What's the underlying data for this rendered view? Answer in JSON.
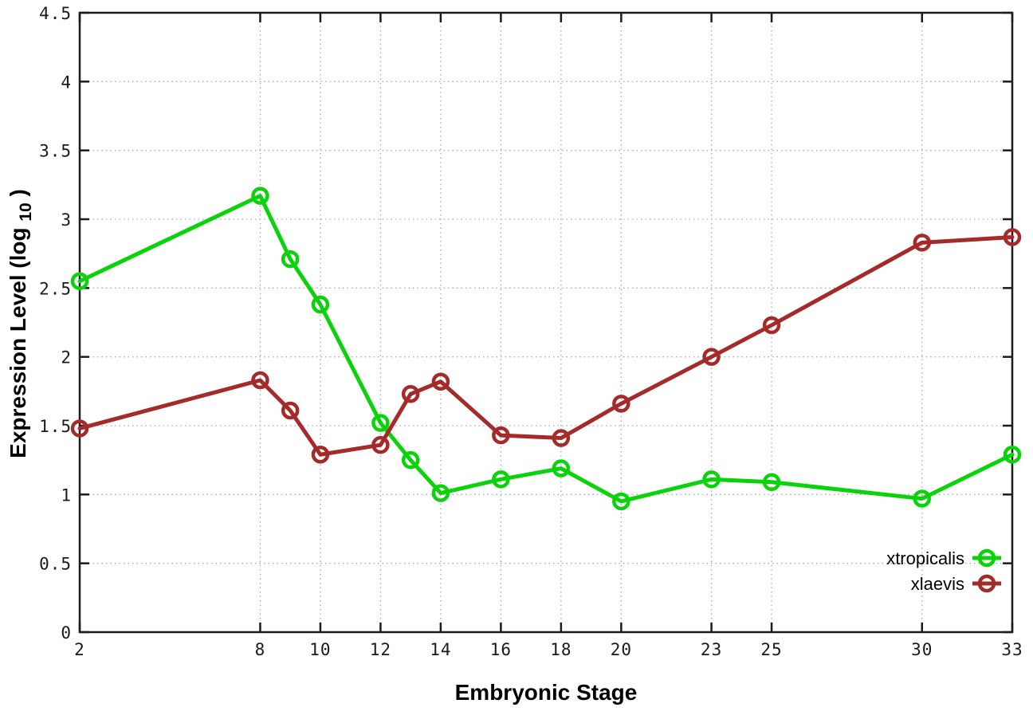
{
  "chart_data": {
    "type": "line",
    "title": "",
    "xlabel": "Embryonic Stage",
    "ylabel": "Expression Level (log10)",
    "ylabel_main": "Expression Level (log",
    "ylabel_sub": "10",
    "ylabel_close": ")",
    "xlim": [
      2,
      33
    ],
    "ylim": [
      0,
      4.5
    ],
    "x_ticks": [
      2,
      8,
      10,
      12,
      14,
      16,
      18,
      20,
      23,
      25,
      30,
      33
    ],
    "x_tick_labels": [
      "2",
      "8",
      "10",
      "12",
      "14",
      "16",
      "18",
      "20",
      "23",
      "25",
      "30",
      "33"
    ],
    "y_ticks": [
      0,
      0.5,
      1,
      1.5,
      2,
      2.5,
      3,
      3.5,
      4,
      4.5
    ],
    "y_tick_labels": [
      "0",
      "0.5",
      "1",
      "1.5",
      "2",
      "2.5",
      "3",
      "3.5",
      "4",
      "4.5"
    ],
    "grid": true,
    "grid_style": "dotted",
    "legend_position": "bottom-right",
    "marker": "open-circle",
    "x": [
      2,
      8,
      9,
      10,
      12,
      13,
      14,
      16,
      18,
      20,
      23,
      25,
      30,
      33
    ],
    "series": [
      {
        "name": "xtropicalis",
        "color": "#0bd30b",
        "values": [
          2.55,
          3.17,
          2.71,
          2.38,
          1.52,
          1.25,
          1.01,
          1.11,
          1.19,
          0.95,
          1.11,
          1.09,
          0.97,
          1.29
        ]
      },
      {
        "name": "xlaevis",
        "color": "#a52a2a",
        "values": [
          1.48,
          1.83,
          1.61,
          1.29,
          1.36,
          1.73,
          1.82,
          1.43,
          1.41,
          1.66,
          2.0,
          2.23,
          2.83,
          2.87
        ]
      }
    ],
    "colors": {
      "axis": "#1c1c1c",
      "grid": "#aaaaaa",
      "background": "#ffffff",
      "tick_text": "#1a1a1a"
    }
  }
}
